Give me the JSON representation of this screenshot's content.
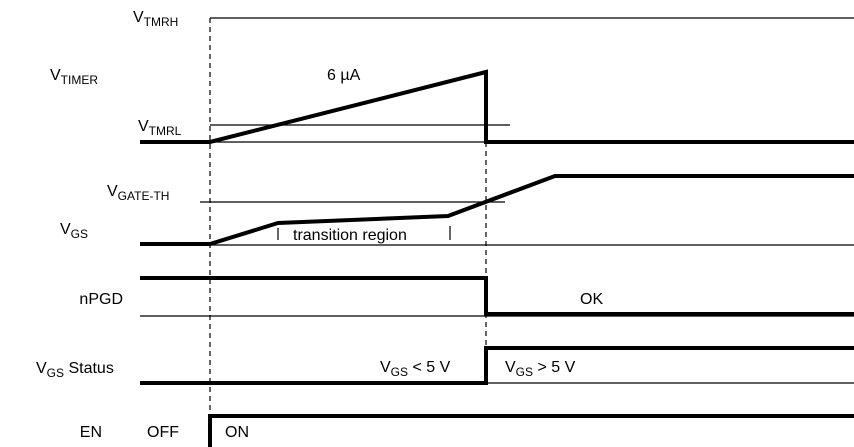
{
  "signals": {
    "vtimer": {
      "main": "V",
      "sub": "TIMER"
    },
    "vgs": {
      "main": "V",
      "sub": "GS"
    },
    "npgd": "nPGD",
    "vgs_status": {
      "main": "V",
      "sub": "GS",
      "suffix": " Status"
    },
    "en": "EN"
  },
  "levels": {
    "vtmrh": {
      "main": "V",
      "sub": "TMRH"
    },
    "vtmrl": {
      "main": "V",
      "sub": "TMRL"
    },
    "vgate_th": {
      "main": "V",
      "sub": "GATE-TH"
    }
  },
  "annotations": {
    "current": "6 µA",
    "transition_region": "transition region",
    "ok": "OK",
    "vgs_lt": {
      "main": "V",
      "sub": "GS",
      "suffix": " < 5 V"
    },
    "vgs_gt": {
      "main": "V",
      "sub": "GS",
      "suffix": " > 5 V"
    },
    "off": "OFF",
    "on": "ON"
  }
}
